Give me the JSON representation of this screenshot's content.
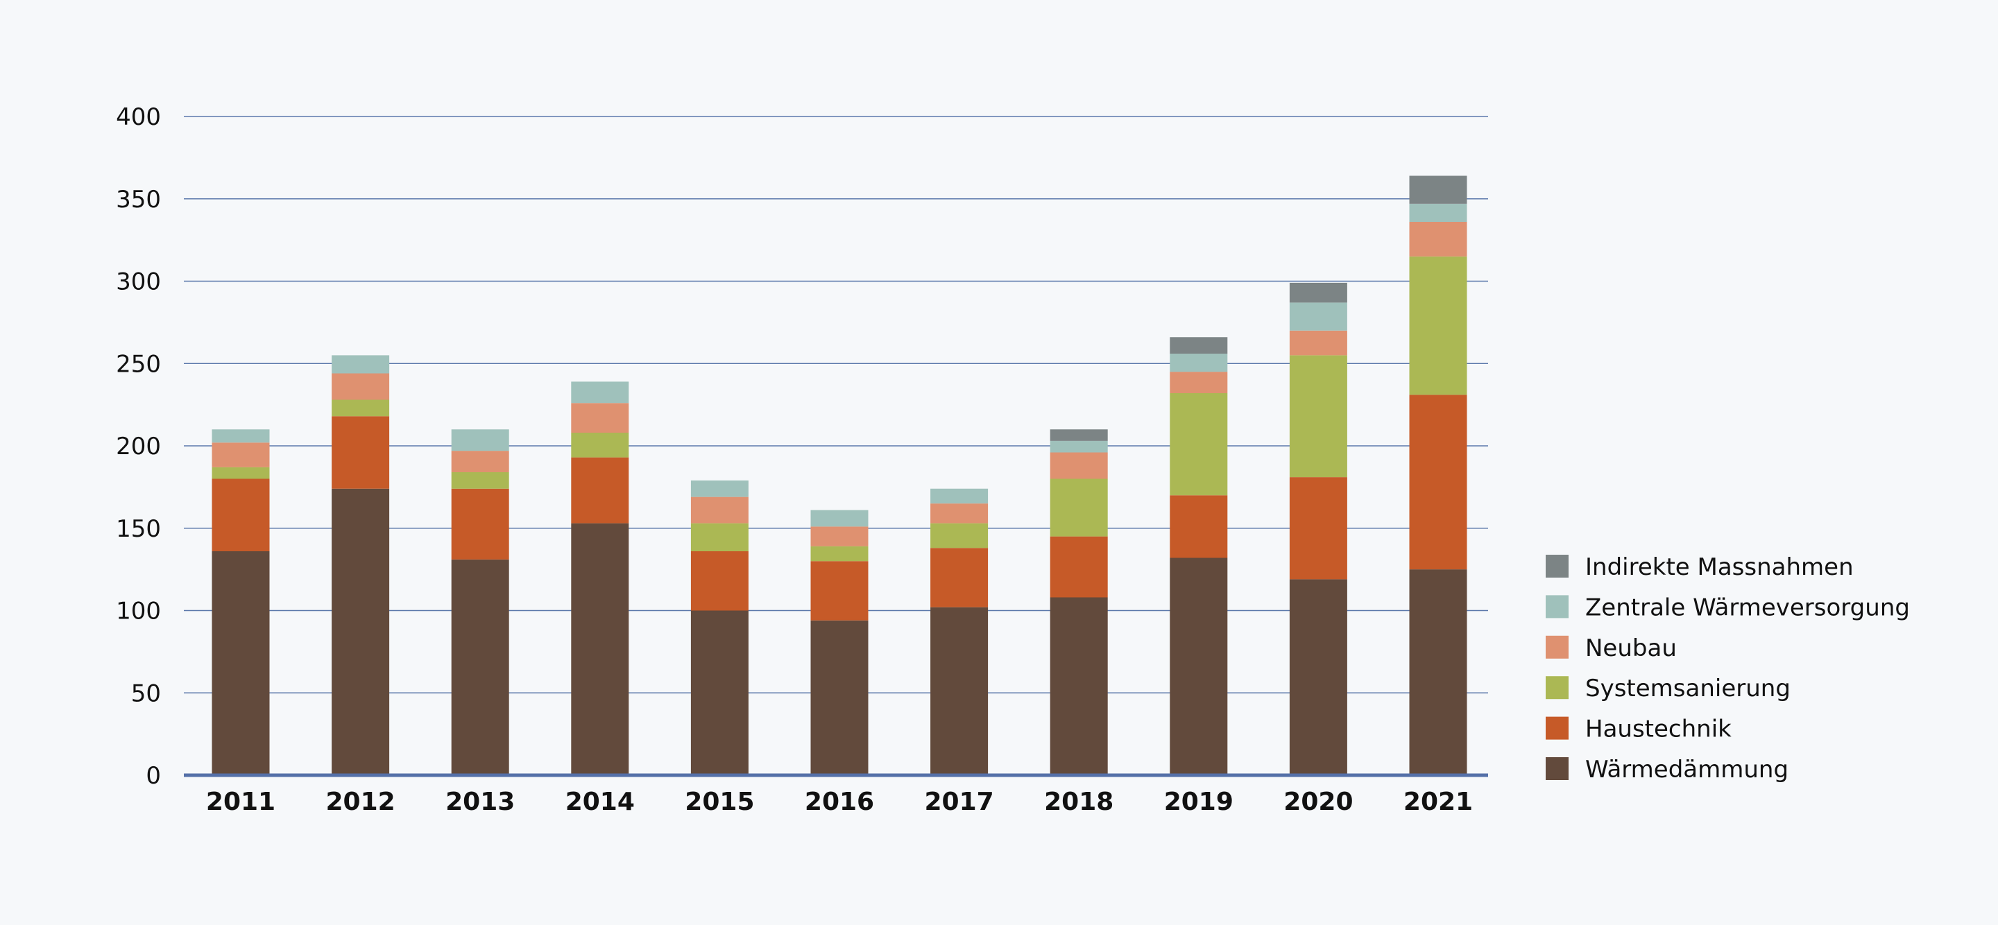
{
  "chart_data": {
    "type": "bar",
    "stacked": true,
    "title": "",
    "xlabel": "",
    "ylabel": "",
    "ylim": [
      0,
      400
    ],
    "yticks": [
      0,
      50,
      100,
      150,
      200,
      250,
      300,
      350,
      400
    ],
    "grid": true,
    "legend_position": "right-bottom",
    "categories": [
      "2011",
      "2012",
      "2013",
      "2014",
      "2015",
      "2016",
      "2017",
      "2018",
      "2019",
      "2020",
      "2021"
    ],
    "series": [
      {
        "name": "Wärmedämmung",
        "color": "#624a3c",
        "values": [
          136,
          174,
          131,
          153,
          100,
          94,
          102,
          108,
          132,
          119,
          125
        ]
      },
      {
        "name": "Haustechnik",
        "color": "#c65a28",
        "values": [
          44,
          44,
          43,
          40,
          36,
          36,
          36,
          37,
          38,
          62,
          106
        ]
      },
      {
        "name": "Systemsanierung",
        "color": "#abb854",
        "values": [
          7,
          10,
          10,
          15,
          17,
          9,
          15,
          35,
          62,
          74,
          84
        ]
      },
      {
        "name": "Neubau",
        "color": "#df9170",
        "values": [
          15,
          16,
          13,
          18,
          16,
          12,
          12,
          16,
          13,
          15,
          21
        ]
      },
      {
        "name": "Zentrale Wärmeversorgung",
        "color": "#9fc1bb",
        "values": [
          8,
          11,
          13,
          13,
          10,
          10,
          9,
          7,
          11,
          17,
          11
        ]
      },
      {
        "name": "Indirekte Massnahmen",
        "color": "#7c8485",
        "values": [
          0,
          0,
          0,
          0,
          0,
          0,
          0,
          7,
          10,
          12,
          17
        ]
      }
    ],
    "colors": {
      "gridline": "#5b78ab",
      "baseline": "#5470a8",
      "background": "#f6f8fa"
    }
  }
}
